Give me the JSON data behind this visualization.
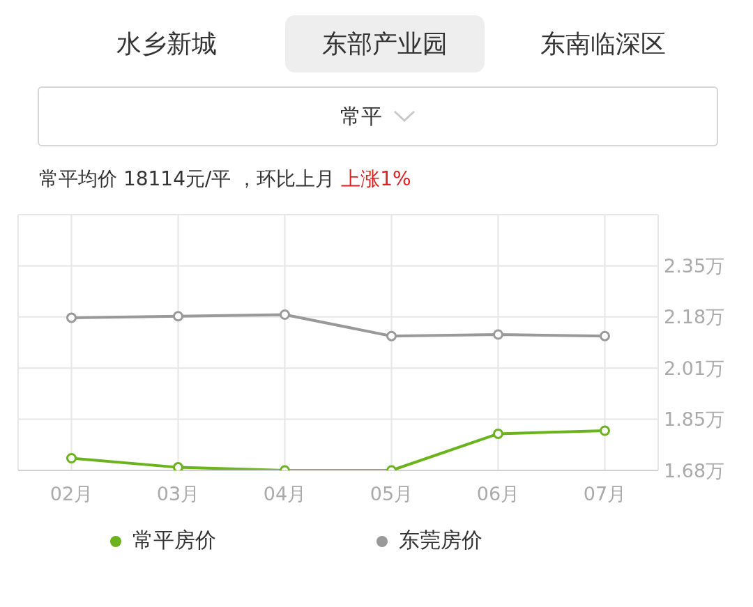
{
  "chart_data": {
    "type": "line",
    "annotations": [
      "水乡新城",
      "东部产业园",
      "东南临深区",
      "常平",
      "常平均价 18114元/平 ，环比上月 ",
      "上涨1%"
    ],
    "categories": [
      "02月",
      "03月",
      "04月",
      "05月",
      "06月",
      "07月"
    ],
    "series": [
      {
        "name": "常平房价",
        "color": "#6ab31c",
        "values": [
          1.72,
          1.69,
          1.68,
          1.68,
          1.8,
          1.81
        ]
      },
      {
        "name": "东莞房价",
        "color": "#999999",
        "values": [
          2.18,
          2.185,
          2.19,
          2.12,
          2.125,
          2.12
        ]
      }
    ],
    "ylim": [
      1.68,
      2.5175
    ],
    "yticks": [
      {
        "value": 1.68,
        "label": "1.68万"
      },
      {
        "value": 1.8475,
        "label": "1.85万"
      },
      {
        "value": 2.015,
        "label": "2.01万"
      },
      {
        "value": 2.1825,
        "label": "2.18万"
      },
      {
        "value": 2.35,
        "label": "2.35万"
      }
    ],
    "grid": true,
    "legend": "bottom",
    "marker": "circle",
    "line_style": "solid"
  }
}
